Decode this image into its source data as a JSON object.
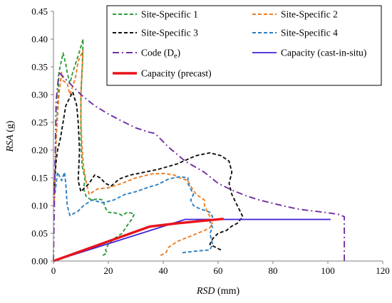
{
  "chart_data": {
    "type": "line",
    "xlabel": "RSD (mm)",
    "xlabel_var": "RSD",
    "xlabel_unit": " (mm)",
    "ylabel": "RSA (g)",
    "ylabel_var": "RSA",
    "ylabel_unit": " (g)",
    "xlim": [
      0,
      120
    ],
    "ylim": [
      0,
      0.45
    ],
    "xticks": [
      0,
      20,
      40,
      60,
      80,
      100,
      120
    ],
    "yticks": [
      0.0,
      0.05,
      0.1,
      0.15,
      0.2,
      0.25,
      0.3,
      0.35,
      0.4,
      0.45
    ],
    "grid": false,
    "legend_position": "top-right",
    "series": [
      {
        "name": "Site-Specific 1",
        "color": "#2e9b3a",
        "style": "dashed",
        "points": [
          [
            18,
            0.01
          ],
          [
            19.5,
            0.015
          ],
          [
            19,
            0.02
          ],
          [
            20,
            0.03
          ],
          [
            22,
            0.04
          ],
          [
            25,
            0.05
          ],
          [
            27,
            0.065
          ],
          [
            28.5,
            0.075
          ],
          [
            29.5,
            0.085
          ],
          [
            27,
            0.088
          ],
          [
            25,
            0.082
          ],
          [
            24,
            0.085
          ],
          [
            22,
            0.087
          ],
          [
            20,
            0.088
          ],
          [
            19,
            0.095
          ],
          [
            18,
            0.11
          ],
          [
            16,
            0.112
          ],
          [
            14,
            0.11
          ],
          [
            12,
            0.115
          ],
          [
            11,
            0.13
          ],
          [
            11.5,
            0.15
          ],
          [
            10.5,
            0.17
          ],
          [
            10,
            0.22
          ],
          [
            10,
            0.3
          ],
          [
            10.5,
            0.35
          ],
          [
            10.8,
            0.4
          ],
          [
            9,
            0.37
          ],
          [
            7,
            0.34
          ],
          [
            6,
            0.32
          ],
          [
            5,
            0.34
          ],
          [
            4.5,
            0.355
          ],
          [
            3.5,
            0.375
          ],
          [
            2,
            0.34
          ],
          [
            1.5,
            0.28
          ],
          [
            1,
            0.22
          ],
          [
            0.5,
            0.15
          ],
          [
            0.2,
            0.1
          ]
        ]
      },
      {
        "name": "Site-Specific 2",
        "color": "#ee7d22",
        "style": "dashed",
        "points": [
          [
            39,
            0.01
          ],
          [
            41,
            0.015
          ],
          [
            42,
            0.025
          ],
          [
            45,
            0.035
          ],
          [
            50,
            0.045
          ],
          [
            55,
            0.055
          ],
          [
            57,
            0.06
          ],
          [
            58,
            0.068
          ],
          [
            56,
            0.072
          ],
          [
            57,
            0.08
          ],
          [
            56,
            0.09
          ],
          [
            55,
            0.1
          ],
          [
            55,
            0.11
          ],
          [
            52,
            0.12
          ],
          [
            50,
            0.135
          ],
          [
            49,
            0.145
          ],
          [
            46,
            0.15
          ],
          [
            44,
            0.155
          ],
          [
            40,
            0.158
          ],
          [
            36,
            0.157
          ],
          [
            30,
            0.15
          ],
          [
            25,
            0.14
          ],
          [
            20,
            0.132
          ],
          [
            16,
            0.13
          ],
          [
            13,
            0.12
          ],
          [
            12,
            0.14
          ],
          [
            11,
            0.17
          ],
          [
            10.5,
            0.2
          ],
          [
            10,
            0.25
          ],
          [
            10,
            0.3
          ],
          [
            10.5,
            0.35
          ],
          [
            10.8,
            0.38
          ],
          [
            9,
            0.36
          ],
          [
            8,
            0.33
          ],
          [
            6,
            0.3
          ],
          [
            5,
            0.32
          ],
          [
            3.5,
            0.325
          ],
          [
            3,
            0.34
          ],
          [
            2,
            0.3
          ],
          [
            1,
            0.22
          ],
          [
            0.5,
            0.15
          ],
          [
            0.2,
            0.1
          ]
        ]
      },
      {
        "name": "Site-Specific 3",
        "color": "#111111",
        "style": "dashed",
        "points": [
          [
            61,
            0.02
          ],
          [
            59,
            0.025
          ],
          [
            57,
            0.03
          ],
          [
            58,
            0.04
          ],
          [
            60,
            0.05
          ],
          [
            63,
            0.055
          ],
          [
            65,
            0.063
          ],
          [
            67,
            0.068
          ],
          [
            69,
            0.08
          ],
          [
            68,
            0.09
          ],
          [
            67,
            0.1
          ],
          [
            66,
            0.11
          ],
          [
            65,
            0.12
          ],
          [
            64,
            0.14
          ],
          [
            65,
            0.16
          ],
          [
            64,
            0.18
          ],
          [
            61,
            0.19
          ],
          [
            57,
            0.195
          ],
          [
            52,
            0.19
          ],
          [
            45,
            0.175
          ],
          [
            38,
            0.165
          ],
          [
            33,
            0.16
          ],
          [
            28,
            0.155
          ],
          [
            24,
            0.148
          ],
          [
            21,
            0.135
          ],
          [
            19,
            0.14
          ],
          [
            17,
            0.15
          ],
          [
            15,
            0.155
          ],
          [
            13,
            0.14
          ],
          [
            11,
            0.13
          ],
          [
            10,
            0.125
          ],
          [
            9,
            0.145
          ],
          [
            9.5,
            0.2
          ],
          [
            9,
            0.25
          ],
          [
            8.5,
            0.28
          ],
          [
            7,
            0.305
          ],
          [
            6,
            0.295
          ],
          [
            4.5,
            0.28
          ],
          [
            3.5,
            0.25
          ],
          [
            2.5,
            0.22
          ],
          [
            1.5,
            0.2
          ],
          [
            1,
            0.18
          ],
          [
            0.5,
            0.15
          ],
          [
            0.2,
            0.12
          ]
        ]
      },
      {
        "name": "Site-Specific 4",
        "color": "#2c7fc2",
        "style": "dashed",
        "points": [
          [
            47,
            0.015
          ],
          [
            52,
            0.018
          ],
          [
            57,
            0.02
          ],
          [
            58,
            0.03
          ],
          [
            57,
            0.05
          ],
          [
            58,
            0.06
          ],
          [
            57,
            0.072
          ],
          [
            58,
            0.08
          ],
          [
            57,
            0.088
          ],
          [
            53,
            0.095
          ],
          [
            51,
            0.1
          ],
          [
            50,
            0.11
          ],
          [
            51,
            0.12
          ],
          [
            50,
            0.13
          ],
          [
            49,
            0.14
          ],
          [
            49,
            0.15
          ],
          [
            46,
            0.152
          ],
          [
            42,
            0.148
          ],
          [
            38,
            0.138
          ],
          [
            34,
            0.132
          ],
          [
            30,
            0.125
          ],
          [
            26,
            0.12
          ],
          [
            22,
            0.11
          ],
          [
            18,
            0.105
          ],
          [
            14,
            0.11
          ],
          [
            11,
            0.1
          ],
          [
            9,
            0.09
          ],
          [
            6,
            0.082
          ],
          [
            5,
            0.1
          ],
          [
            4.5,
            0.14
          ],
          [
            4,
            0.16
          ],
          [
            3,
            0.145
          ],
          [
            2.5,
            0.15
          ],
          [
            1.5,
            0.16
          ],
          [
            1,
            0.14
          ],
          [
            0.5,
            0.12
          ]
        ]
      },
      {
        "name": "Code (De)",
        "name_main": "Code (D",
        "name_sub": "e",
        "name_tail": ")",
        "color": "#7030a0",
        "style": "dashdot",
        "points": [
          [
            0,
            0.0
          ],
          [
            0.5,
            0.15
          ],
          [
            1,
            0.29
          ],
          [
            2,
            0.34
          ],
          [
            5,
            0.325
          ],
          [
            10,
            0.3
          ],
          [
            15,
            0.28
          ],
          [
            20,
            0.265
          ],
          [
            25,
            0.252
          ],
          [
            30,
            0.24
          ],
          [
            35,
            0.232
          ],
          [
            37,
            0.23
          ],
          [
            42,
            0.205
          ],
          [
            48,
            0.18
          ],
          [
            55,
            0.16
          ],
          [
            60,
            0.14
          ],
          [
            65,
            0.128
          ],
          [
            70,
            0.118
          ],
          [
            75,
            0.11
          ],
          [
            80,
            0.104
          ],
          [
            85,
            0.098
          ],
          [
            90,
            0.093
          ],
          [
            95,
            0.09
          ],
          [
            100,
            0.087
          ],
          [
            104,
            0.084
          ],
          [
            106,
            0.08
          ],
          [
            106,
            0.0
          ]
        ]
      },
      {
        "name": "Capacity (cast-in-situ)",
        "color": "#3b22d6",
        "style": "solid",
        "points": [
          [
            0,
            0.0
          ],
          [
            48,
            0.075
          ],
          [
            101,
            0.075
          ]
        ]
      },
      {
        "name": "Capacity (precast)",
        "color": "#e8131a",
        "style": "solid-thick",
        "points": [
          [
            0,
            0.0
          ],
          [
            35,
            0.062
          ],
          [
            45,
            0.068
          ],
          [
            62,
            0.076
          ]
        ]
      }
    ]
  }
}
